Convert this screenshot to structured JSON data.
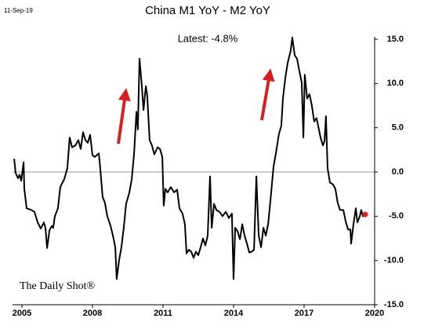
{
  "chart_data": {
    "type": "line",
    "title": "China M1 YoY - M2 YoY",
    "date_label": "11-Sep-19",
    "annotation": "Latest:  -4.8%",
    "source": "The Daily Shot®",
    "xlim": [
      2004.6,
      2020
    ],
    "xticks": [
      2005,
      2008,
      2011,
      2014,
      2017,
      2020
    ],
    "ylim": [
      -15,
      15
    ],
    "yticks": [
      {
        "value": 15,
        "label": "15.0"
      },
      {
        "value": 10,
        "label": "10.0"
      },
      {
        "value": 5,
        "label": "5.0"
      },
      {
        "value": 0,
        "label": "0.0"
      },
      {
        "value": -5,
        "label": "-5.0"
      },
      {
        "value": -10,
        "label": "-10.0"
      },
      {
        "value": -15,
        "label": "-15.0"
      }
    ],
    "series": [
      {
        "name": "M1 YoY - M2 YoY",
        "color": "#000000",
        "x": [
          2004.67,
          2004.73,
          2004.83,
          2004.9,
          2004.97,
          2005.07,
          2005.1,
          2005.2,
          2005.4,
          2005.53,
          2005.67,
          2005.8,
          2005.93,
          2006.0,
          2006.07,
          2006.17,
          2006.27,
          2006.33,
          2006.4,
          2006.53,
          2006.63,
          2006.8,
          2006.93,
          2007.03,
          2007.13,
          2007.27,
          2007.4,
          2007.5,
          2007.6,
          2007.7,
          2007.8,
          2007.9,
          2008.0,
          2008.1,
          2008.27,
          2008.33,
          2008.43,
          2008.53,
          2008.63,
          2008.77,
          2008.87,
          2008.97,
          2009.03,
          2009.13,
          2009.23,
          2009.33,
          2009.43,
          2009.57,
          2009.67,
          2009.77,
          2009.87,
          2009.93,
          2010.0,
          2010.1,
          2010.17,
          2010.27,
          2010.33,
          2010.43,
          2010.53,
          2010.63,
          2010.77,
          2010.87,
          2010.97,
          2011.03,
          2011.1,
          2011.2,
          2011.33,
          2011.47,
          2011.6,
          2011.7,
          2011.83,
          2011.93,
          2012.0,
          2012.1,
          2012.2,
          2012.3,
          2012.4,
          2012.5,
          2012.6,
          2012.7,
          2012.8,
          2012.9,
          2013.0,
          2013.07,
          2013.17,
          2013.27,
          2013.4,
          2013.53,
          2013.67,
          2013.8,
          2013.93,
          2014.0,
          2014.07,
          2014.17,
          2014.27,
          2014.37,
          2014.47,
          2014.57,
          2014.67,
          2014.77,
          2014.87,
          2014.97,
          2015.07,
          2015.17,
          2015.27,
          2015.37,
          2015.47,
          2015.57,
          2015.7,
          2015.8,
          2015.93,
          2016.03,
          2016.1,
          2016.2,
          2016.3,
          2016.43,
          2016.5,
          2016.6,
          2016.7,
          2016.8,
          2016.9,
          2016.97,
          2017.03,
          2017.13,
          2017.23,
          2017.33,
          2017.43,
          2017.53,
          2017.6,
          2017.7,
          2017.8,
          2017.87,
          2017.93,
          2018.0,
          2018.1,
          2018.23,
          2018.33,
          2018.43,
          2018.53,
          2018.67,
          2018.77,
          2018.87,
          2018.97,
          2019.0,
          2019.1,
          2019.2,
          2019.27,
          2019.37,
          2019.43,
          2019.5,
          2019.6
        ],
        "values": [
          1.5,
          -0.1,
          -0.7,
          -0.3,
          -1.0,
          1.1,
          -1.9,
          -4.1,
          -4.3,
          -4.5,
          -5.7,
          -6.4,
          -5.7,
          -6.3,
          -8.6,
          -6.6,
          -6.1,
          -6.3,
          -5.0,
          -4.1,
          -1.7,
          -0.8,
          0.4,
          3.9,
          2.8,
          3.0,
          3.6,
          2.6,
          4.5,
          3.6,
          3.3,
          4.2,
          1.9,
          1.7,
          2.1,
          0.4,
          -2.8,
          -3.5,
          -5.0,
          -6.1,
          -7.2,
          -8.5,
          -12.1,
          -10.0,
          -8.5,
          -6.3,
          -3.6,
          -2.3,
          -0.8,
          2.1,
          6.8,
          4.8,
          12.8,
          9.7,
          7.0,
          9.7,
          8.6,
          3.6,
          3.0,
          2.0,
          2.8,
          2.6,
          1.7,
          -3.8,
          -1.9,
          -2.3,
          -1.7,
          -2.3,
          -2.0,
          -4.1,
          -4.7,
          -5.9,
          -9.2,
          -8.8,
          -9.0,
          -9.7,
          -9.0,
          -9.4,
          -8.5,
          -7.5,
          -8.3,
          -7.2,
          -0.5,
          -6.3,
          -3.6,
          -4.3,
          -4.5,
          -5.0,
          -4.5,
          -5.2,
          -4.7,
          -12.1,
          -6.3,
          -6.7,
          -7.6,
          -5.9,
          -7.2,
          -8.1,
          -9.1,
          -9.0,
          -8.8,
          -0.5,
          -7.2,
          -8.5,
          -6.3,
          -7.2,
          -5.9,
          -3.2,
          0.6,
          2.1,
          4.3,
          5.2,
          8.3,
          10.6,
          12.3,
          13.7,
          15.2,
          13.2,
          12.8,
          11.4,
          10.1,
          3.9,
          11.0,
          8.3,
          8.8,
          7.5,
          5.7,
          6.1,
          5.2,
          3.9,
          3.0,
          3.5,
          6.3,
          0.4,
          -1.2,
          -1.4,
          -1.9,
          -3.5,
          -4.3,
          -4.3,
          -5.6,
          -6.5,
          -6.5,
          -8.1,
          -5.9,
          -4.1,
          -5.7,
          -5.0,
          -4.3,
          -5.0,
          -4.8
        ]
      }
    ],
    "latest_marker_color": "#e02020"
  }
}
